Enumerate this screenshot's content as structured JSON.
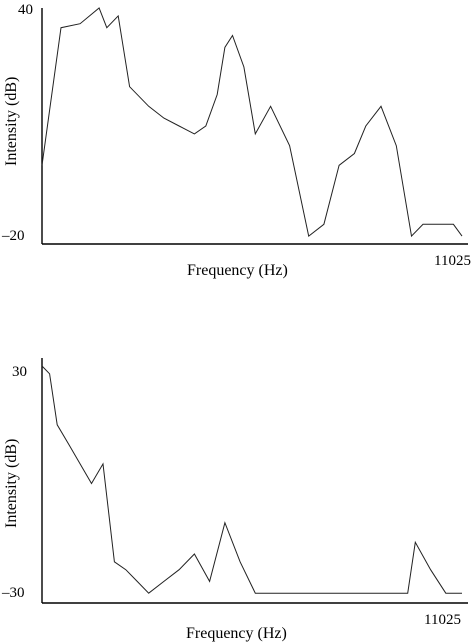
{
  "chart_data": [
    {
      "type": "line",
      "title": "",
      "xlabel": "Frequency (Hz)",
      "ylabel": "Intensity (dB)",
      "xlim": [
        0,
        11025
      ],
      "ylim": [
        -20,
        40
      ],
      "y_tick_labels": [
        "40",
        "–20"
      ],
      "x_tick_labels": [
        "11025"
      ],
      "grid": false,
      "series": [
        {
          "x": [
            0,
            500,
            1000,
            1500,
            1700,
            2000,
            2300,
            2800,
            3200,
            3600,
            4000,
            4300,
            4600,
            4800,
            5000,
            5300,
            5600,
            6000,
            6500,
            7000,
            7400,
            7800,
            8200,
            8500,
            8900,
            9300,
            9700,
            10000,
            10400,
            10800,
            11025
          ],
          "y": [
            0,
            35,
            36,
            40,
            35,
            38,
            20,
            15,
            12,
            10,
            8,
            10,
            18,
            30,
            33,
            25,
            8,
            15,
            5,
            -18,
            -15,
            0,
            3,
            10,
            15,
            5,
            -18,
            -15,
            -15,
            -15,
            -18
          ]
        }
      ]
    },
    {
      "type": "line",
      "title": "",
      "xlabel": "Frequency (Hz)",
      "ylabel": "Intensity (dB)",
      "xlim": [
        0,
        11025
      ],
      "ylim": [
        -30,
        30
      ],
      "y_tick_labels": [
        "30",
        "–30"
      ],
      "x_tick_labels": [
        "11025"
      ],
      "grid": false,
      "series": [
        {
          "x": [
            0,
            200,
            400,
            700,
            1000,
            1300,
            1600,
            1900,
            2200,
            2500,
            2800,
            3200,
            3600,
            4000,
            4400,
            4800,
            5200,
            5600,
            6000,
            6400,
            6800,
            7200,
            7600,
            8000,
            8400,
            8800,
            9200,
            9600,
            9800,
            10200,
            10600,
            11025
          ],
          "y": [
            30,
            28,
            15,
            10,
            5,
            0,
            5,
            -20,
            -22,
            -25,
            -28,
            -25,
            -22,
            -18,
            -25,
            -10,
            -20,
            -28,
            -28,
            -28,
            -28,
            -28,
            -28,
            -28,
            -28,
            -28,
            -28,
            -28,
            -15,
            -22,
            -28,
            -28
          ]
        }
      ]
    }
  ]
}
